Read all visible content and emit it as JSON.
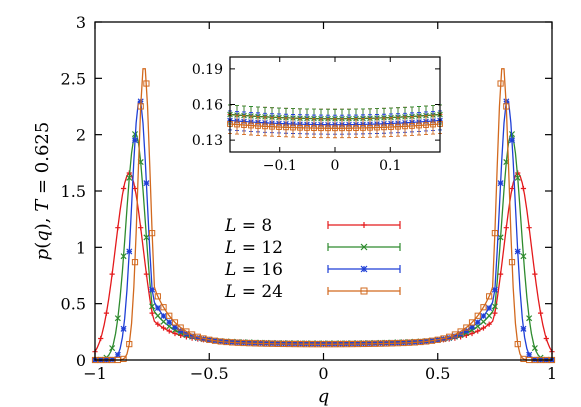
{
  "chart_data": {
    "type": "line",
    "xlabel": "q",
    "ylabel": "p(q), T = 0.625",
    "xlim": [
      -1,
      1
    ],
    "ylim": [
      0,
      3
    ],
    "xticks": [
      "-1",
      "-0.5",
      "0",
      "0.5",
      "1"
    ],
    "yticks": [
      "0",
      "0.5",
      "1",
      "1.5",
      "2",
      "2.5",
      "3"
    ],
    "grid": false,
    "legend_position": "center",
    "series": [
      {
        "name": "L = 8",
        "legend_var": "L",
        "legend_eq": " = 8",
        "color": "#e41a1c",
        "marker": "plus",
        "peak_q": 0.85,
        "peak_p": 1.66,
        "valley_p": 0.148,
        "width": 0.085
      },
      {
        "name": "L = 12",
        "legend_var": "L",
        "legend_eq": " = 12",
        "color": "#2e8b2e",
        "marker": "cross",
        "peak_q": 0.822,
        "peak_p": 2.01,
        "valley_p": 0.148,
        "width": 0.06
      },
      {
        "name": "L = 16",
        "legend_var": "L",
        "legend_eq": " = 16",
        "color": "#1f3fd6",
        "marker": "star",
        "peak_q": 0.805,
        "peak_p": 2.32,
        "valley_p": 0.143,
        "width": 0.048
      },
      {
        "name": "L = 24",
        "legend_var": "L",
        "legend_eq": " = 24",
        "color": "#d2691e",
        "marker": "square",
        "peak_q": 0.785,
        "peak_p": 2.63,
        "valley_p": 0.14,
        "width": 0.038
      }
    ],
    "inset": {
      "xlim": [
        -0.19,
        0.19
      ],
      "ylim": [
        0.12,
        0.2
      ],
      "xticks": [
        "-0.1",
        "0",
        "0.1"
      ],
      "yticks": [
        "0.19",
        "0.16",
        "0.13"
      ],
      "error_bar": 0.008
    }
  }
}
